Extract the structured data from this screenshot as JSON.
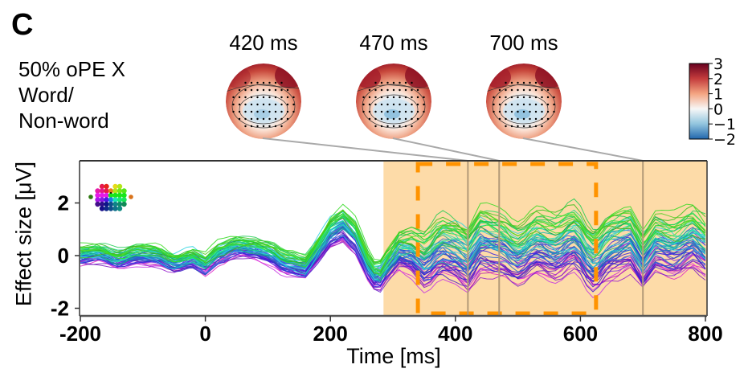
{
  "panel": {
    "letter": "C",
    "condition_lines": [
      "50% oPE X",
      "Word/",
      "Non-word"
    ]
  },
  "topomaps": [
    {
      "title": "420 ms",
      "time_ms": 420
    },
    {
      "title": "470 ms",
      "time_ms": 470
    },
    {
      "title": "700 ms",
      "time_ms": 700
    }
  ],
  "colorbar": {
    "ticks": [
      3,
      2,
      1,
      0,
      -1,
      -2
    ],
    "tick_labels": [
      "3",
      "2",
      "1",
      "0",
      "−1",
      "−2"
    ],
    "range": [
      -2,
      3
    ],
    "colormap": "RdBu_r",
    "colors": {
      "high": "#7a0d1e",
      "mid": "#f7f2ef",
      "low": "#2e7bb8"
    }
  },
  "colors": {
    "shade": "#fddba8",
    "dashed_box": "#ff9300",
    "marker_line": "#b39a78",
    "connector": "#a9a9a9",
    "axis": "#333333"
  },
  "chart_data": {
    "type": "line",
    "title": "",
    "xlabel": "Time [ms]",
    "ylabel": "Effect size [μV]",
    "xlim": [
      -200,
      800
    ],
    "ylim": [
      -2.2,
      3.6
    ],
    "xticks": [
      -200,
      0,
      200,
      400,
      600,
      800
    ],
    "xtick_labels": [
      "-200",
      "0",
      "200",
      "400",
      "600",
      "800"
    ],
    "yticks": [
      2,
      0,
      -2
    ],
    "ytick_labels": [
      "2",
      "0",
      "-2"
    ],
    "grid": false,
    "legend": "sensor-color inset, top-left",
    "n_channels": 60,
    "significant_window_ms": [
      285,
      800
    ],
    "dashed_box": {
      "x_ms": [
        340,
        625
      ],
      "y_uv": [
        -2.2,
        3.5
      ]
    },
    "topomap_marker_times_ms": [
      420,
      470,
      700
    ],
    "mean_waveform": {
      "x": [
        -200,
        -170,
        -140,
        -110,
        -80,
        -50,
        -20,
        0,
        20,
        50,
        80,
        100,
        130,
        160,
        180,
        200,
        220,
        240,
        260,
        275,
        290,
        310,
        330,
        350,
        380,
        400,
        420,
        440,
        470,
        500,
        530,
        560,
        590,
        620,
        650,
        680,
        700,
        720,
        750,
        780,
        800
      ],
      "y": [
        0,
        0.05,
        -0.15,
        0.05,
        0.0,
        -0.3,
        -0.1,
        -0.35,
        0.05,
        0.3,
        0.25,
        0.1,
        -0.3,
        -0.45,
        0.2,
        0.9,
        1.2,
        0.7,
        -0.4,
        -0.9,
        -0.4,
        0.2,
        0.1,
        -0.3,
        0.3,
        0.2,
        -0.1,
        0.6,
        0.4,
        0.0,
        0.5,
        0.2,
        0.6,
        -0.2,
        0.4,
        0.6,
        -0.2,
        0.5,
        0.3,
        0.6,
        0.2
      ]
    },
    "spread_waveform": {
      "note": "per-channel deviation scale (μV) across time; channels spread between green (frontal, positive) and purple (posterior, negative)",
      "x": [
        -200,
        0,
        150,
        220,
        280,
        400,
        600,
        800
      ],
      "y": [
        0.25,
        0.3,
        0.35,
        0.55,
        0.5,
        1.1,
        1.1,
        1.0
      ]
    }
  }
}
